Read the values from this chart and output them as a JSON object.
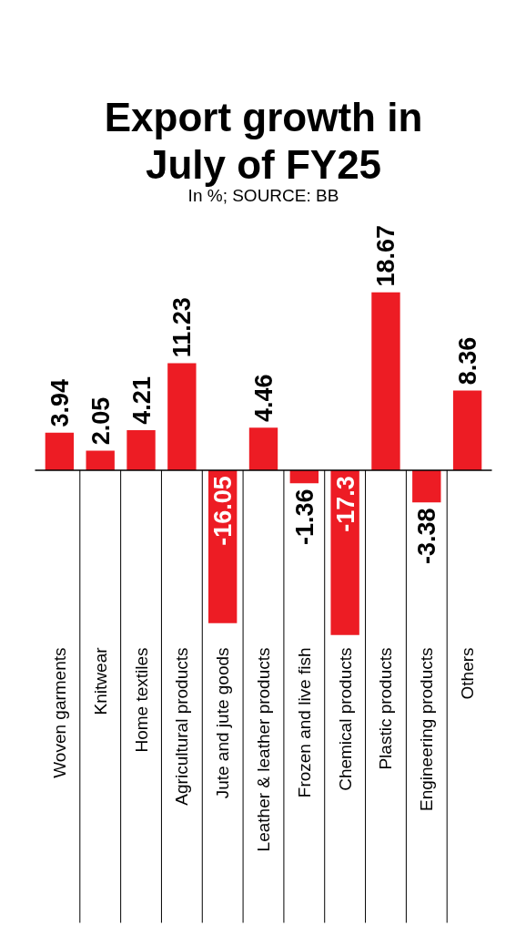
{
  "chart_data": {
    "type": "bar",
    "title": "Export growth in July of FY25",
    "subtitle": "In %; SOURCE: BB",
    "categories": [
      "Woven garments",
      "Knitwear",
      "Home textiles",
      "Agricultural products",
      "Jute and jute goods",
      "Leather & leather products",
      "Frozen and live fish",
      "Chemical products",
      "Plastic products",
      "Engineering products",
      "Others"
    ],
    "values": [
      3.94,
      2.05,
      4.21,
      11.23,
      -16.05,
      4.46,
      -1.36,
      -17.3,
      18.67,
      -3.38,
      8.36
    ],
    "color": "#ed1c24",
    "data_labels": true,
    "grid": false
  }
}
